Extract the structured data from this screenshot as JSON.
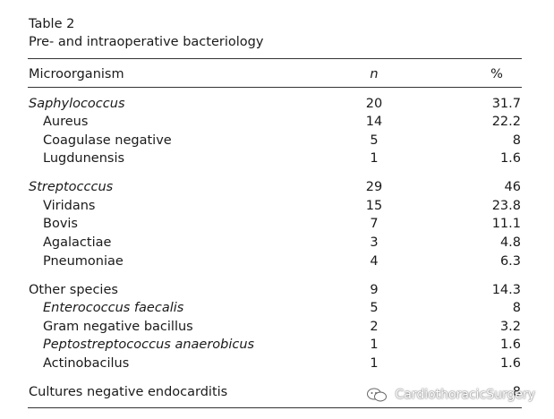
{
  "caption": {
    "label": "Table 2",
    "title": "Pre- and intraoperative bacteriology"
  },
  "header": {
    "col1": "Microorganism",
    "col2": "n",
    "col3": "%"
  },
  "rows": [
    {
      "name": "Saphylococcus",
      "n": "20",
      "pct": "31.7"
    },
    {
      "name": "Aureus",
      "n": "14",
      "pct": "22.2"
    },
    {
      "name": "Coagulase negative",
      "n": "5",
      "pct": "8"
    },
    {
      "name": "Lugdunensis",
      "n": "1",
      "pct": "1.6"
    },
    {
      "name": "Streptocccus",
      "n": "29",
      "pct": "46"
    },
    {
      "name": "Viridans",
      "n": "15",
      "pct": "23.8"
    },
    {
      "name": "Bovis",
      "n": "7",
      "pct": "11.1"
    },
    {
      "name": "Agalactiae",
      "n": "3",
      "pct": "4.8"
    },
    {
      "name": "Pneumoniae",
      "n": "4",
      "pct": "6.3"
    },
    {
      "name": "Other species",
      "n": "9",
      "pct": "14.3"
    },
    {
      "name": "Enterococcus faecalis",
      "n": "5",
      "pct": "8"
    },
    {
      "name": "Gram negative bacillus",
      "n": "2",
      "pct": "3.2"
    },
    {
      "name": "Peptostreptococcus anaerobicus",
      "n": "1",
      "pct": "1.6"
    },
    {
      "name": "Actinobacilus",
      "n": "1",
      "pct": "1.6"
    },
    {
      "name": "Cultures negative endocarditis",
      "n": "",
      "pct": "8"
    }
  ],
  "watermark": {
    "text": "CardiothoracicSurgery",
    "icon": "chat-bubbles-icon"
  }
}
